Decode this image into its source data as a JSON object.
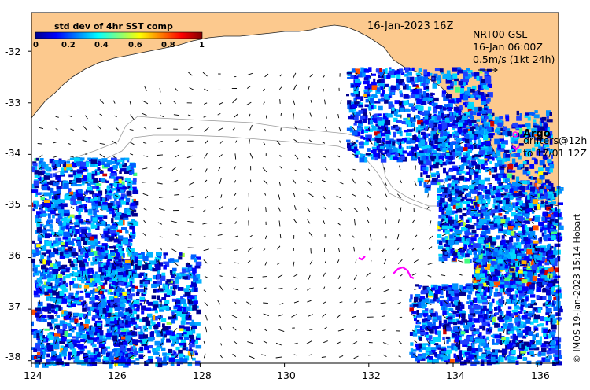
{
  "map": {
    "date_title": "16-Jan-2023 16Z",
    "colorbar": {
      "title": "std dev of 4hr SST comp",
      "ticks": [
        "0",
        "0.2",
        "0.4",
        "0.6",
        "0.8",
        "1"
      ],
      "colormap": "jet"
    },
    "current_info": {
      "line1": "NRT00 GSL",
      "line2": "16-Jan 06:00Z",
      "line3": "0.5m/s (1kt 24h)"
    },
    "legend": {
      "argo_label": "Argo",
      "argo_color": "#ff00ff",
      "drifters_line1": "drifters@12h",
      "drifters_line2": "to 17/01 12Z",
      "drifters_color": "#ff00ff"
    },
    "x_axis": {
      "ticks": [
        "124",
        "126",
        "128",
        "130",
        "132",
        "134",
        "136"
      ],
      "range": [
        124,
        136.5
      ]
    },
    "y_axis": {
      "ticks": [
        "-32",
        "-33",
        "-34",
        "-35",
        "-36",
        "-37",
        "-38"
      ],
      "range": [
        -38.05,
        -31.25
      ]
    },
    "credit": "© IMOS 19-Jan-2023 15:14 Hobart",
    "land_color": "#fcc98e",
    "ocean_color": "#ffffff"
  }
}
